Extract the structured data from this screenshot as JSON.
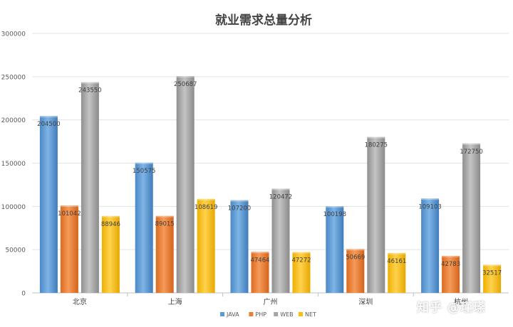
{
  "chart_data": {
    "type": "bar",
    "title": "就业需求总量分析",
    "categories": [
      "北京",
      "上海",
      "广州",
      "深圳",
      "杭州"
    ],
    "series": [
      {
        "name": "JAVA",
        "color": "#5B9BD5",
        "values": [
          204500,
          150575,
          107200,
          100198,
          109103
        ]
      },
      {
        "name": "PHP",
        "color": "#ED7D31",
        "values": [
          101042,
          89015,
          47464,
          50669,
          42783
        ]
      },
      {
        "name": "WEB",
        "color": "#A5A5A5",
        "values": [
          243550,
          250687,
          120472,
          180275,
          172750
        ]
      },
      {
        "name": "NET",
        "color": "#FFC000",
        "values": [
          88946,
          108619,
          47272,
          46161,
          32517
        ]
      }
    ],
    "ylim": [
      0,
      300000
    ],
    "yticks": [
      0,
      50000,
      100000,
      150000,
      200000,
      250000,
      300000
    ],
    "grid": true,
    "legend": "bottom"
  },
  "watermark": "知乎 @瑾瑹"
}
